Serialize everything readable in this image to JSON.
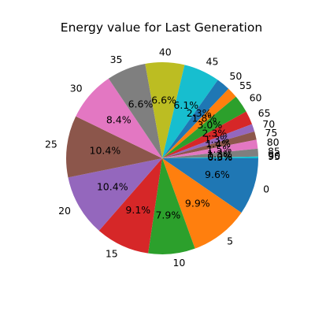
{
  "chart_data": {
    "type": "pie",
    "title": "Energy value for Last Generation",
    "start_angle_deg": 0,
    "direction": "clockwise",
    "legend": "none",
    "categories": [
      "0",
      "5",
      "10",
      "15",
      "20",
      "25",
      "30",
      "35",
      "40",
      "45",
      "50",
      "55",
      "60",
      "65",
      "70",
      "75",
      "80",
      "85",
      "90",
      "95"
    ],
    "percent_labels": [
      "9.6%",
      "9.9%",
      "7.9%",
      "9.1%",
      "10.4%",
      "10.4%",
      "8.4%",
      "6.6%",
      "6.6%",
      "6.1%",
      "2.3%",
      "1.8%",
      "3.0%",
      "2.3%",
      "1.3%",
      "1.4%",
      "1.5%",
      "1.3%",
      "0.0%",
      "0.3%"
    ],
    "values": [
      9.6,
      9.9,
      7.9,
      9.1,
      10.4,
      10.4,
      8.4,
      6.6,
      6.6,
      6.1,
      2.3,
      1.8,
      3.0,
      2.3,
      1.3,
      1.4,
      1.5,
      1.3,
      0.0,
      0.3
    ],
    "colors": [
      "#1f77b4",
      "#ff7f0e",
      "#2ca02c",
      "#d62728",
      "#9467bd",
      "#8c564b",
      "#e377c2",
      "#7f7f7f",
      "#bcbd22",
      "#17becf",
      "#1f77b4",
      "#ff7f0e",
      "#2ca02c",
      "#d62728",
      "#9467bd",
      "#8c564b",
      "#e377c2",
      "#7f7f7f",
      "#bcbd22",
      "#17becf"
    ]
  }
}
